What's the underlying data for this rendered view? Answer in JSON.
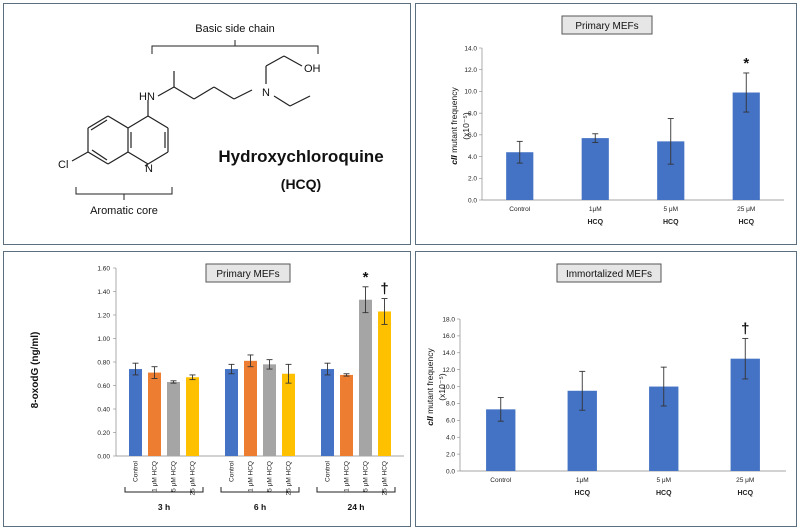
{
  "molecule": {
    "name": "Hydroxychloroquine",
    "abbr": "(HCQ)",
    "side_chain_label": "Basic side chain",
    "core_label": "Aromatic core",
    "atoms": {
      "oh": "OH",
      "n_side": "N",
      "hn": "HN",
      "cl": "Cl",
      "n_ring": "N"
    }
  },
  "chart_data": [
    {
      "id": "primary-mefs-mutant",
      "type": "bar",
      "title": "Primary MEFs",
      "ylabel_prefix": "cII",
      "ylabel_rest": " mutant frequency",
      "ylabel_units": "(x10⁻⁵)",
      "ylim": [
        0,
        14
      ],
      "yticks": [
        "0.0",
        "2.0",
        "4.0",
        "6.0",
        "8.0",
        "10.0",
        "12.0",
        "14.0"
      ],
      "categories": [
        {
          "line1": "Control",
          "line2": ""
        },
        {
          "line1": "1μM",
          "line2": "HCQ"
        },
        {
          "line1": "5 μM",
          "line2": "HCQ"
        },
        {
          "line1": "25 μM",
          "line2": "HCQ"
        }
      ],
      "values": [
        4.4,
        5.7,
        5.4,
        9.9
      ],
      "errors": [
        1.0,
        0.4,
        2.1,
        1.8
      ],
      "markers": [
        "",
        "",
        "",
        "*"
      ],
      "color": "#4472c4"
    },
    {
      "id": "oxodg",
      "type": "bar",
      "title": "Primary MEFs",
      "ylabel": "8-oxodG (ng/ml)",
      "ylim": [
        0,
        1.6
      ],
      "yticks": [
        "0.00",
        "0.20",
        "0.40",
        "0.60",
        "0.80",
        "1.00",
        "1.20",
        "1.40",
        "1.60"
      ],
      "groups": [
        {
          "label": "3 h",
          "values": [
            0.74,
            0.71,
            0.63,
            0.67
          ],
          "errors": [
            0.05,
            0.05,
            0.01,
            0.02
          ],
          "markers": [
            "",
            "",
            "",
            ""
          ]
        },
        {
          "label": "6 h",
          "values": [
            0.74,
            0.81,
            0.78,
            0.7
          ],
          "errors": [
            0.04,
            0.05,
            0.04,
            0.08
          ],
          "markers": [
            "",
            "",
            "",
            ""
          ]
        },
        {
          "label": "24 h",
          "values": [
            0.74,
            0.69,
            1.33,
            1.23
          ],
          "errors": [
            0.05,
            0.01,
            0.11,
            0.11
          ],
          "markers": [
            "",
            "",
            "*",
            "†"
          ]
        }
      ],
      "categories": [
        "Control",
        "1 μM HCQ",
        "5 μM HCQ",
        "25 μM HCQ"
      ],
      "colors": [
        "#4472c4",
        "#ed7d31",
        "#a5a5a5",
        "#ffc000"
      ]
    },
    {
      "id": "immortalized-mefs-mutant",
      "type": "bar",
      "title": "Immortalized MEFs",
      "ylabel_prefix": "cII",
      "ylabel_rest": " mutant frequency",
      "ylabel_units": "(x10⁻⁵)",
      "ylim": [
        0,
        18
      ],
      "yticks": [
        "0.0",
        "2.0",
        "4.0",
        "6.0",
        "8.0",
        "10.0",
        "12.0",
        "14.0",
        "16.0",
        "18.0"
      ],
      "categories": [
        {
          "line1": "Control",
          "line2": ""
        },
        {
          "line1": "1μM",
          "line2": "HCQ"
        },
        {
          "line1": "5 μM",
          "line2": "HCQ"
        },
        {
          "line1": "25 μM",
          "line2": "HCQ"
        }
      ],
      "values": [
        7.3,
        9.5,
        10.0,
        13.3
      ],
      "errors": [
        1.4,
        2.3,
        2.3,
        2.4
      ],
      "markers": [
        "",
        "",
        "",
        "†"
      ],
      "color": "#4472c4"
    }
  ]
}
